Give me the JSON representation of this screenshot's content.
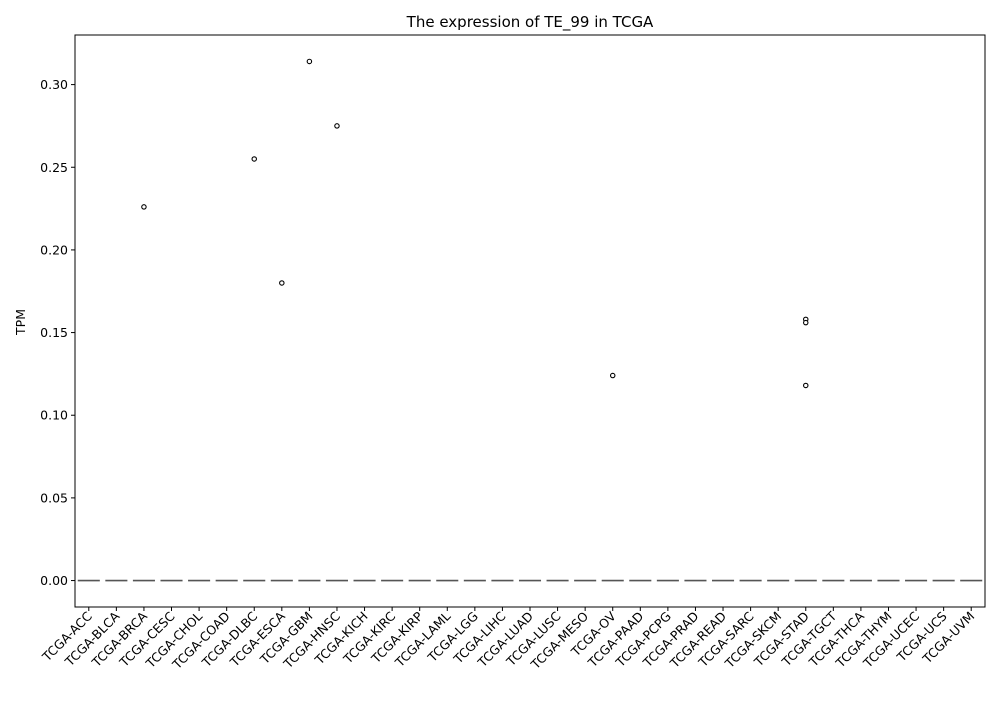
{
  "chart_data": {
    "type": "box",
    "title": "The expression of TE_99 in TCGA",
    "xlabel": "",
    "ylabel": "TPM",
    "ylim": [
      -0.016,
      0.33
    ],
    "yticks": [
      0.0,
      0.05,
      0.1,
      0.15,
      0.2,
      0.25,
      0.3
    ],
    "ytick_labels": [
      "0.00",
      "0.05",
      "0.10",
      "0.15",
      "0.20",
      "0.25",
      "0.30"
    ],
    "grid": false,
    "categories": [
      "TCGA-ACC",
      "TCGA-BLCA",
      "TCGA-BRCA",
      "TCGA-CESC",
      "TCGA-CHOL",
      "TCGA-COAD",
      "TCGA-DLBC",
      "TCGA-ESCA",
      "TCGA-GBM",
      "TCGA-HNSC",
      "TCGA-KICH",
      "TCGA-KIRC",
      "TCGA-KIRP",
      "TCGA-LAML",
      "TCGA-LGG",
      "TCGA-LIHC",
      "TCGA-LUAD",
      "TCGA-LUSC",
      "TCGA-MESO",
      "TCGA-OV",
      "TCGA-PAAD",
      "TCGA-PCPG",
      "TCGA-PRAD",
      "TCGA-READ",
      "TCGA-SARC",
      "TCGA-SKCM",
      "TCGA-STAD",
      "TCGA-TGCT",
      "TCGA-THCA",
      "TCGA-THYM",
      "TCGA-UCEC",
      "TCGA-UCS",
      "TCGA-UVM"
    ],
    "medians": [
      0,
      0,
      0,
      0,
      0,
      0,
      0,
      0,
      0,
      0,
      0,
      0,
      0,
      0,
      0,
      0,
      0,
      0,
      0,
      0,
      0,
      0,
      0,
      0,
      0,
      0,
      0,
      0,
      0,
      0,
      0,
      0,
      0
    ],
    "outliers": [
      {
        "category": "TCGA-BRCA",
        "values": [
          0.226
        ]
      },
      {
        "category": "TCGA-DLBC",
        "values": [
          0.255
        ]
      },
      {
        "category": "TCGA-ESCA",
        "values": [
          0.18
        ]
      },
      {
        "category": "TCGA-GBM",
        "values": [
          0.314
        ]
      },
      {
        "category": "TCGA-HNSC",
        "values": [
          0.275
        ]
      },
      {
        "category": "TCGA-OV",
        "values": [
          0.124
        ]
      },
      {
        "category": "TCGA-STAD",
        "values": [
          0.158,
          0.156,
          0.118
        ]
      }
    ],
    "colors": {
      "axis": "#000000",
      "median": "#555555",
      "outlier_edge": "#000000"
    }
  }
}
